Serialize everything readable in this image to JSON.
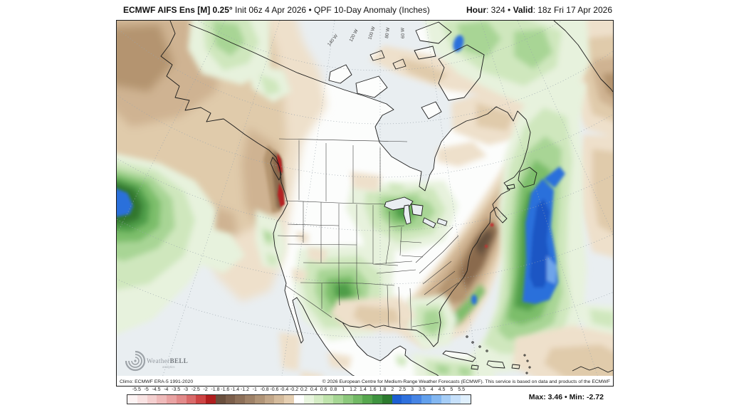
{
  "header": {
    "title_bold": "ECMWF AIFS Ens [M] 0.25°",
    "title_rest": " Init 06z 4 Apr 2026 • QPF 10-Day Anomaly (Inches)",
    "hour_label": "Hour",
    "hour_value": ": 324 • ",
    "valid_label": "Valid",
    "valid_value": ": 18z Fri 17 Apr 2026"
  },
  "map": {
    "longitude_labels": [
      "140 W",
      "120 W",
      "100 W",
      "80 W",
      "60 W"
    ],
    "logo": {
      "icon": "cyclone-spiral-icon",
      "text_light": "Weather",
      "text_bold": "BELL",
      "sub": "analytics"
    },
    "attribution_left": "Climo: ECMWF ERA-5 1991-2020",
    "attribution_right": "© 2026 European Centre for Medium-Range Weather Forecasts (ECMWF). This service is based on data and products of the ECMWF"
  },
  "colorbar": {
    "units": "Inches",
    "tick_labels": [
      "-5.5",
      "-5",
      "-4.5",
      "-4",
      "-3.5",
      "-3",
      "-2.5",
      "-2",
      "-1.8",
      "-1.6",
      "-1.4",
      "-1.2",
      "-1",
      "-0.8",
      "-0.6",
      "-0.4",
      "-0.2",
      "0.2",
      "0.4",
      "0.6",
      "0.8",
      "1",
      "1.2",
      "1.4",
      "1.6",
      "1.8",
      "2",
      "2.5",
      "3",
      "3.5",
      "4",
      "4.5",
      "5",
      "5.5"
    ],
    "cell_colors": [
      "#fdf4f4",
      "#f9e3e3",
      "#f4cfcf",
      "#efbaba",
      "#e9a3a3",
      "#e28a8a",
      "#d96a6a",
      "#cd4444",
      "#b01e1e",
      "#6a4f3d",
      "#7b5e4a",
      "#8c6f58",
      "#9e8167",
      "#b09477",
      "#c2a789",
      "#d4bb9c",
      "#e5cfb2",
      "#ffffff",
      "#e9f5df",
      "#d5ecc5",
      "#bfe3ac",
      "#a6d694",
      "#8cc87c",
      "#72b965",
      "#57a74f",
      "#3f9340",
      "#2c7a2e",
      "#1d5fd2",
      "#2e70dc",
      "#4684e4",
      "#62a0ec",
      "#83b7f1",
      "#a5cdf6",
      "#c6e0fa",
      "#dfeffc"
    ]
  },
  "stats": {
    "max_label": "Max",
    "max_value": ": 3.46",
    "dot": " • ",
    "min_label": "Min",
    "min_value": ": -2.72"
  }
}
